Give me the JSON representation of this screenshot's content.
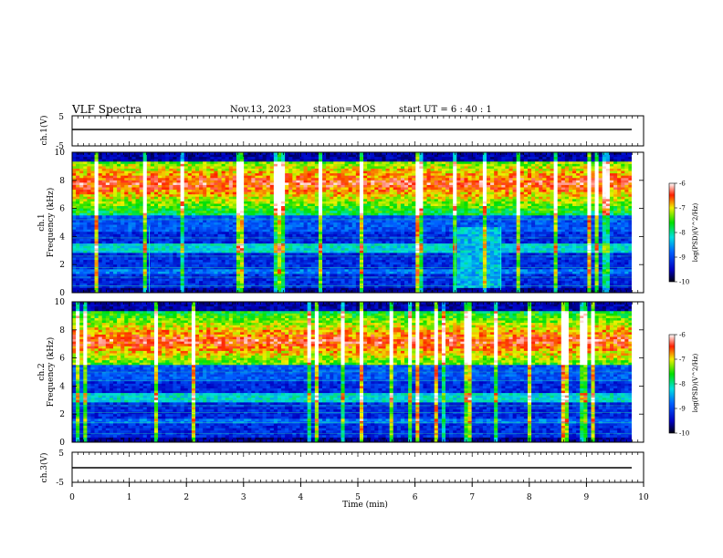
{
  "header": {
    "title": "VLF Spectra",
    "date": "Nov.13, 2023",
    "station": "station=MOS",
    "start_ut": "start UT =  6 : 40 : 1"
  },
  "chart_data": [
    {
      "type": "line",
      "name": "ch1-voltage",
      "ylabel": "ch.1(V)",
      "ylim": [
        -5,
        5
      ],
      "yticks": [
        "5",
        "-5"
      ],
      "level": 0
    },
    {
      "type": "heatmap",
      "name": "ch1-spectrogram",
      "title": "ch.1",
      "xlabel": "Time (min)",
      "ylabel": "Frequency (kHz)",
      "xlim": [
        0,
        10
      ],
      "ylim": [
        0,
        10
      ],
      "yticks": [
        "0",
        "2",
        "4",
        "6",
        "8",
        "10"
      ],
      "colorbar": {
        "label": "log(PSD)(V^2/Hz)",
        "ticks": [
          "-6",
          "-7",
          "-8",
          "-9",
          "-10"
        ],
        "range": [
          -10,
          -6
        ]
      },
      "segment_boundaries_min": [
        1.35,
        6.7,
        7.5
      ]
    },
    {
      "type": "heatmap",
      "name": "ch2-spectrogram",
      "title": "ch.2",
      "xlabel": "Time (min)",
      "ylabel": "Frequency (kHz)",
      "xlim": [
        0,
        10
      ],
      "ylim": [
        0,
        10
      ],
      "yticks": [
        "0",
        "2",
        "4",
        "6",
        "8",
        "10"
      ],
      "colorbar": {
        "label": "log(PSD)(V^2/Hz)",
        "ticks": [
          "-6",
          "-7",
          "-8",
          "-9",
          "-10"
        ],
        "range": [
          -10,
          -6
        ]
      }
    },
    {
      "type": "line",
      "name": "ch3-voltage",
      "ylabel": "ch.3(V)",
      "ylim": [
        -5,
        5
      ],
      "yticks": [
        "5",
        "-5"
      ],
      "level": 0
    }
  ],
  "xaxis": {
    "label": "Time (min)",
    "xlim": [
      0,
      10
    ],
    "ticks": [
      "0",
      "1",
      "2",
      "3",
      "4",
      "5",
      "6",
      "7",
      "8",
      "9",
      "10"
    ],
    "data_end_min": 9.8
  }
}
